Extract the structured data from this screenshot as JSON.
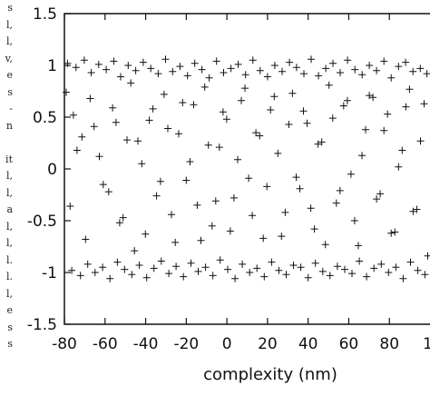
{
  "margin_fragments": [
    "s",
    "l,",
    "l,",
    "v,",
    "e",
    "s",
    "-",
    "n",
    "",
    "it",
    "l,",
    "l,",
    "a",
    "l,",
    "l,",
    "l.",
    "l.",
    "l,",
    "e",
    "s",
    "s"
  ],
  "chart_data": {
    "type": "scatter",
    "title": "",
    "xlabel": "complexity (nm)",
    "ylabel": "",
    "xlim": [
      -80,
      100
    ],
    "ylim": [
      -1.5,
      1.5
    ],
    "xticks": [
      -80,
      -60,
      -40,
      -20,
      0,
      20,
      40,
      60,
      80
    ],
    "xtick_labels": [
      "-80",
      "-60",
      "-40",
      "-20",
      "0",
      "20",
      "40",
      "60",
      "80"
    ],
    "yticks": [
      -1.5,
      -1,
      -0.5,
      0,
      0.5,
      1,
      1.5
    ],
    "ytick_labels": [
      "-1.5",
      "-1",
      "-0.5",
      "0",
      "0.5",
      "1",
      "1.5"
    ],
    "marker": "+",
    "marker_color": "#111111",
    "grid": false,
    "legend": "none",
    "series": [
      {
        "x": [
          -78.5,
          -74.3,
          -70.2,
          -66.8,
          -63.1,
          -59.4,
          -55.7,
          -52.3,
          -48.6,
          -44.9,
          -41.2,
          -37.5,
          -33.8,
          -30.2,
          -26.7,
          -23.1,
          -19.4,
          -15.8,
          -12.3,
          -8.7,
          -5.1,
          -1.6,
          2.0,
          5.6,
          9.2,
          12.8,
          16.4,
          20.0,
          23.6,
          27.2,
          30.8,
          34.3,
          37.9,
          41.5,
          45.1,
          48.7,
          52.2,
          55.8,
          59.4,
          63.0,
          66.6,
          70.1,
          73.7,
          77.3,
          80.9,
          84.5,
          88.0,
          91.6,
          95.2,
          98.5,
          -76.4,
          -72.1,
          -68.5,
          -64.9,
          -61.2,
          -57.6,
          -53.9,
          -50.4,
          -46.8,
          -43.1,
          -39.5,
          -35.9,
          -32.3,
          -28.6,
          -25.0,
          -21.4,
          -17.7,
          -14.1,
          -10.5,
          -6.9,
          -3.3,
          0.4,
          4.0,
          7.6,
          11.2,
          14.8,
          18.4,
          22.0,
          25.6,
          29.2,
          32.8,
          36.4,
          40.0,
          43.6,
          47.2,
          50.8,
          54.4,
          58.0,
          61.6,
          65.2,
          68.8,
          72.4,
          76.0,
          79.6,
          83.2,
          86.8,
          90.4,
          94.0,
          97.5,
          -79.1,
          -75.6,
          -71.4,
          -67.3,
          -62.8,
          -58.2,
          -54.6,
          -51.1,
          -47.3,
          -43.8,
          -40.1,
          -36.4,
          -32.7,
          -29.1,
          -25.4,
          -21.8,
          -18.2,
          -14.6,
          -10.9,
          -7.3,
          -3.7,
          -0.1,
          3.5,
          7.1,
          10.7,
          14.3,
          17.9,
          21.5,
          25.1,
          28.7,
          32.3,
          35.9,
          39.5,
          43.1,
          46.7,
          50.3,
          53.9,
          57.5,
          61.1,
          64.7,
          68.3,
          71.9,
          75.5,
          79.1,
          82.7,
          86.3,
          89.9,
          93.5,
          97.1,
          -77.2,
          -73.8,
          -69.6,
          -65.4,
          -60.9,
          -56.3,
          -52.8,
          -49.2,
          -45.5,
          -41.9,
          -38.2,
          -34.6,
          -30.9,
          -27.3,
          -23.7,
          -20.0,
          -16.4,
          -12.8,
          -9.1,
          -5.5,
          -1.9,
          1.7,
          5.3,
          8.9,
          12.5,
          16.1,
          19.7,
          23.3,
          26.9,
          30.5,
          34.1,
          37.7,
          41.3,
          44.9,
          48.5,
          52.1,
          55.7,
          59.3,
          62.9,
          66.5,
          70.1,
          73.7,
          77.3,
          80.9,
          84.5,
          88.1,
          91.7,
          95.3,
          98.9
        ],
        "y": [
          1.02,
          0.98,
          1.05,
          0.93,
          1.01,
          0.96,
          1.04,
          0.89,
          1.0,
          0.95,
          1.03,
          0.97,
          0.92,
          1.06,
          0.94,
          0.99,
          0.9,
          1.02,
          0.96,
          0.88,
          1.04,
          0.93,
          0.97,
          1.01,
          0.91,
          1.05,
          0.95,
          0.89,
          1.0,
          0.94,
          1.03,
          0.98,
          0.92,
          1.06,
          0.9,
          0.97,
          1.02,
          0.93,
          1.05,
          0.96,
          0.91,
          1.0,
          0.95,
          1.04,
          0.88,
          0.99,
          1.03,
          0.94,
          0.97,
          0.92,
          -0.98,
          -1.03,
          -0.92,
          -1.0,
          -0.95,
          -1.06,
          -0.9,
          -0.97,
          -1.02,
          -0.93,
          -1.05,
          -0.96,
          -0.89,
          -1.01,
          -0.94,
          -1.04,
          -0.91,
          -0.99,
          -0.95,
          -1.03,
          -0.88,
          -0.97,
          -1.06,
          -0.92,
          -1.0,
          -0.96,
          -1.04,
          -0.9,
          -0.98,
          -1.02,
          -0.93,
          -0.95,
          -1.05,
          -0.91,
          -0.99,
          -1.03,
          -0.94,
          -0.97,
          -1.01,
          -0.89,
          -1.04,
          -0.96,
          -0.92,
          -1.0,
          -0.95,
          -1.06,
          -0.9,
          -0.98,
          -1.02,
          0.74,
          0.52,
          0.31,
          0.68,
          0.12,
          -0.22,
          0.45,
          -0.47,
          0.83,
          0.27,
          -0.63,
          0.58,
          -0.12,
          0.39,
          -0.71,
          0.64,
          0.07,
          -0.35,
          0.79,
          -0.55,
          0.21,
          0.48,
          -0.28,
          0.66,
          -0.09,
          0.35,
          -0.67,
          0.57,
          0.15,
          -0.42,
          0.73,
          -0.19,
          0.44,
          -0.58,
          0.26,
          0.81,
          -0.33,
          0.61,
          -0.05,
          -0.74,
          0.38,
          0.69,
          -0.24,
          0.53,
          -0.61,
          0.18,
          0.77,
          -0.39,
          0.63,
          -0.36,
          0.18,
          -0.68,
          0.41,
          -0.15,
          0.59,
          -0.52,
          0.28,
          -0.79,
          0.05,
          0.47,
          -0.26,
          0.72,
          -0.44,
          0.34,
          -0.11,
          0.62,
          -0.69,
          0.23,
          -0.31,
          0.55,
          -0.6,
          0.09,
          0.78,
          -0.45,
          0.32,
          -0.17,
          0.7,
          -0.65,
          0.43,
          -0.08,
          0.56,
          -0.38,
          0.24,
          -0.73,
          0.49,
          -0.21,
          0.66,
          -0.5,
          0.13,
          0.71,
          -0.29,
          0.37,
          -0.62,
          0.02,
          0.6,
          -0.41,
          0.27,
          -0.84
        ]
      }
    ]
  }
}
